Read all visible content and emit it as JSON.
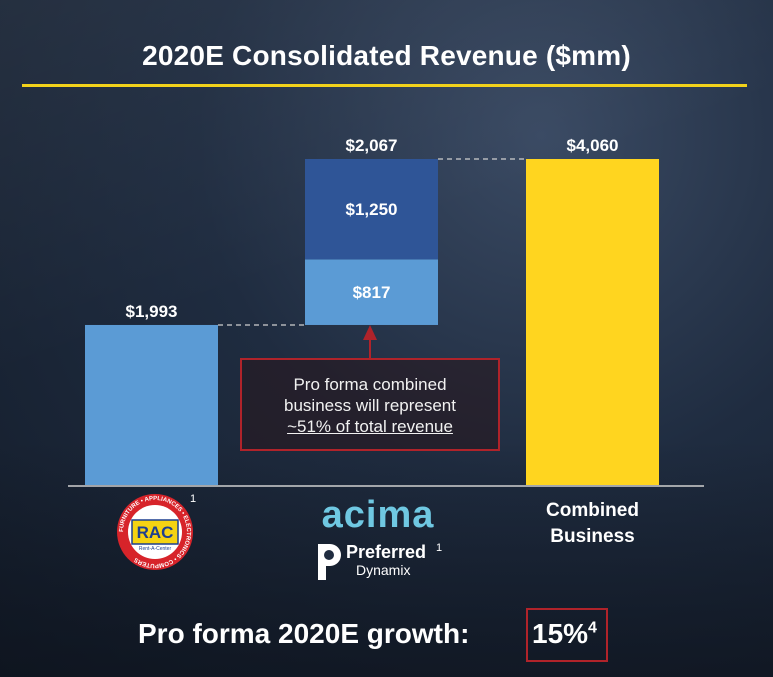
{
  "title": "2020E Consolidated Revenue ($mm)",
  "chart_data": {
    "type": "bar",
    "subtype": "waterfall",
    "ylim": [
      0,
      4060
    ],
    "bars": [
      {
        "id": "rac",
        "label": "RAC",
        "base": 0,
        "value": 1993,
        "total_label": "$1,993",
        "color": "#5b9bd5"
      },
      {
        "id": "acima-pd",
        "label": "acima / Preferred Dynamix",
        "base": 1993,
        "total_label": "$2,067",
        "segments": [
          {
            "value": 817,
            "label": "$817",
            "color": "#5b9bd5"
          },
          {
            "value": 1250,
            "label": "$1,250",
            "color": "#2f5597"
          }
        ]
      },
      {
        "id": "combined",
        "label": "Combined Business",
        "base": 0,
        "value": 4060,
        "total_label": "$4,060",
        "color": "#ffd51f"
      }
    ]
  },
  "callout": {
    "line1": "Pro forma combined",
    "line2": "business will represent",
    "line3": "~51% of total revenue"
  },
  "logos": {
    "rac_text": "RAC",
    "rac_ring_text": "FURNITURE • APPLIANCES • ELECTRONICS • COMPUTERS",
    "rac_tagline": "Rent-A-Center",
    "acima": "acima",
    "preferred": "Preferred",
    "dynamix": "Dynamix",
    "footnote_rac": "1",
    "footnote_pd": "1"
  },
  "combined_label_line1": "Combined",
  "combined_label_line2": "Business",
  "growth": {
    "label": "Pro forma 2020E growth:",
    "value": "15%",
    "footnote": "4"
  }
}
